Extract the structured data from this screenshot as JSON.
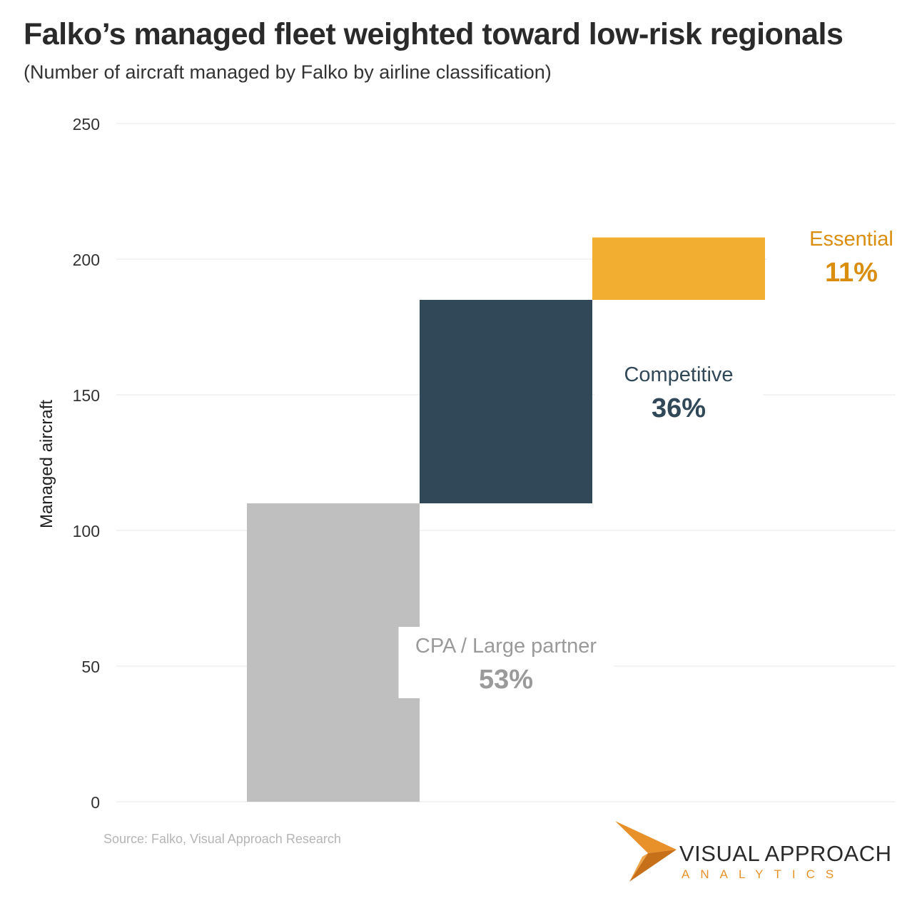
{
  "title": "Falko’s managed fleet weighted toward low-risk regionals",
  "subtitle": "(Number of aircraft managed by Falko by airline classification)",
  "source": "Source: Falko, Visual Approach Research",
  "logo": {
    "line1": "VISUAL APPROACH",
    "line2": "ANALYTICS",
    "accent": "#e8912b"
  },
  "chart_data": {
    "type": "bar",
    "subtype": "waterfall",
    "ylabel": "Managed aircraft",
    "xlabel": "",
    "ylim": [
      0,
      250
    ],
    "yticks": [
      0,
      50,
      100,
      150,
      200,
      250
    ],
    "grid": true,
    "series": [
      {
        "category": "CPA / Large partner",
        "start": 0,
        "end": 110,
        "percent_label": "53%",
        "color": "#bfbfbf",
        "label_color": "#9a9a9a"
      },
      {
        "category": "Competitive",
        "start": 110,
        "end": 185,
        "percent_label": "36%",
        "color": "#314858",
        "label_color": "#314858"
      },
      {
        "category": "Essential",
        "start": 185,
        "end": 208,
        "percent_label": "11%",
        "color": "#f2ae30",
        "label_color": "#d98e0f"
      }
    ]
  }
}
